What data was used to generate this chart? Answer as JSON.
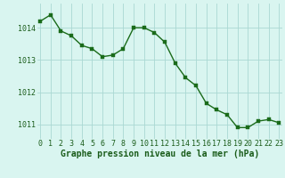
{
  "x": [
    0,
    1,
    2,
    3,
    4,
    5,
    6,
    7,
    8,
    9,
    10,
    11,
    12,
    13,
    14,
    15,
    16,
    17,
    18,
    19,
    20,
    21,
    22,
    23
  ],
  "y": [
    1014.2,
    1014.4,
    1013.9,
    1013.75,
    1013.45,
    1013.35,
    1013.1,
    1013.15,
    1013.35,
    1014.0,
    1014.0,
    1013.85,
    1013.55,
    1012.9,
    1012.45,
    1012.2,
    1011.65,
    1011.45,
    1011.3,
    1010.9,
    1010.9,
    1011.1,
    1011.15,
    1011.05
  ],
  "line_color": "#1a6b1a",
  "marker_color": "#1a6b1a",
  "bg_color": "#d9f5f0",
  "grid_color": "#aad8d3",
  "xlabel": "Graphe pression niveau de la mer (hPa)",
  "xlabel_color": "#1a5c1a",
  "tick_color": "#1a5c1a",
  "ylim": [
    1010.55,
    1014.75
  ],
  "xlim": [
    -0.3,
    23.3
  ],
  "yticks": [
    1011,
    1012,
    1013,
    1014
  ],
  "xticks": [
    0,
    1,
    2,
    3,
    4,
    5,
    6,
    7,
    8,
    9,
    10,
    11,
    12,
    13,
    14,
    15,
    16,
    17,
    18,
    19,
    20,
    21,
    22,
    23
  ],
  "xlabel_fontsize": 7,
  "tick_fontsize": 6,
  "marker_size": 2.5,
  "line_width": 1.0
}
